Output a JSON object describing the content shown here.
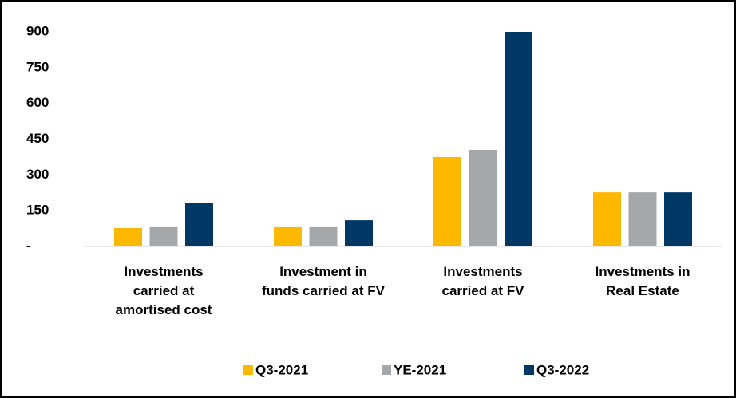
{
  "chart_data": {
    "type": "bar",
    "categories": [
      "Investments\ncarried at\namortised cost",
      "Investment in\nfunds carried at FV",
      "Investments\ncarried at FV",
      "Investments in\nReal Estate"
    ],
    "series": [
      {
        "name": "Q3-2021",
        "color": "#FFB800",
        "values": [
          77,
          84,
          375,
          227
        ]
      },
      {
        "name": "YE-2021",
        "color": "#A5A8AA",
        "values": [
          84,
          84,
          405,
          227
        ]
      },
      {
        "name": "Q3-2022",
        "color": "#003865",
        "values": [
          184,
          110,
          900,
          227
        ]
      }
    ],
    "ylim": [
      0,
      900
    ],
    "yticks": [
      {
        "value": 0,
        "label": "-"
      },
      150,
      300,
      450,
      600,
      750,
      900
    ],
    "legend": "bottom"
  }
}
